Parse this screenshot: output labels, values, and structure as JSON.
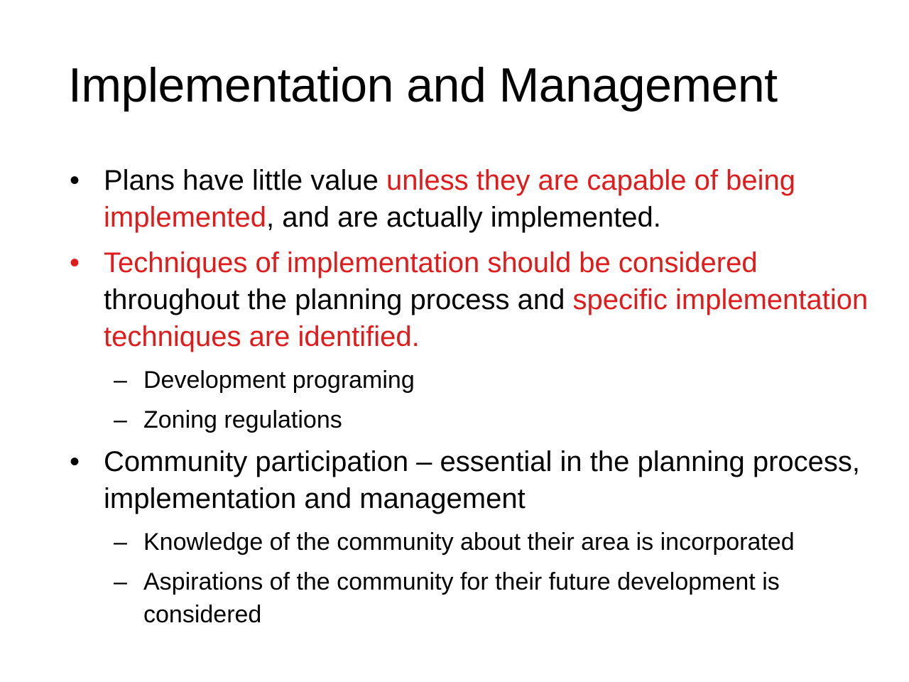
{
  "title": "Implementation and Management",
  "colors": {
    "text": "#000000",
    "highlight": "#e01b1b",
    "background": "#ffffff"
  },
  "bullet_glyph": "•",
  "sub_bullet_glyph": "–",
  "items": [
    {
      "segments": [
        {
          "text": "Plans have little value ",
          "highlight": false
        },
        {
          "text": "unless they are capable of being implemented",
          "highlight": true
        },
        {
          "text": ", and are actually implemented.",
          "highlight": false
        }
      ]
    },
    {
      "segments": [
        {
          "text": "Techniques of implementation should be considered",
          "highlight": true
        },
        {
          "text": " throughout the planning process and ",
          "highlight": false
        },
        {
          "text": "specific implementation techniques are identified.",
          "highlight": true
        }
      ],
      "sub": [
        "Development programing",
        "Zoning regulations"
      ]
    },
    {
      "segments": [
        {
          "text": "Community participation – essential in the planning process, implementation and management",
          "highlight": false
        }
      ],
      "sub": [
        "Knowledge of the community about their area is incorporated",
        "Aspirations of the community for their future development is considered"
      ]
    }
  ]
}
